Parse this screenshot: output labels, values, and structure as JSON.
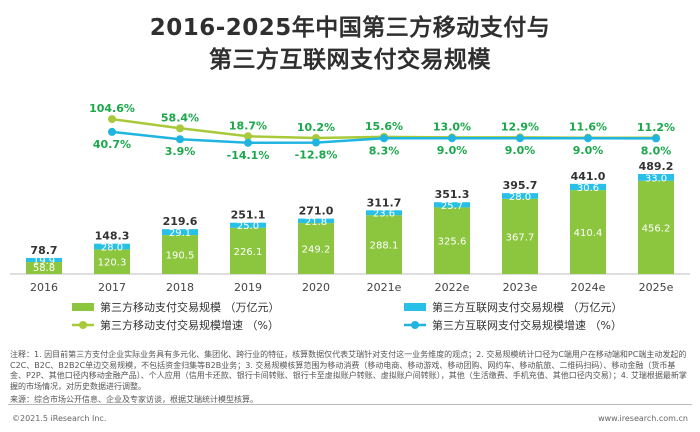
{
  "title_line1": "2016-2025年中国第三方移动支付与",
  "title_line2": "第三方互联网支付交易规模",
  "chart_data": {
    "type": "bar",
    "categories": [
      "2016",
      "2017",
      "2018",
      "2019",
      "2020",
      "2021e",
      "2022e",
      "2023e",
      "2024e",
      "2025e"
    ],
    "series": [
      {
        "name": "第三方移动支付交易规模 （万亿元）",
        "type": "bar",
        "values": [
          58.8,
          120.3,
          190.5,
          226.1,
          249.2,
          288.1,
          325.6,
          367.7,
          410.4,
          456.2
        ],
        "color": "#8cc63f"
      },
      {
        "name": "第三方互联网支付交易规模 （万亿元）",
        "type": "bar",
        "values": [
          19.9,
          28.0,
          29.1,
          25.0,
          21.8,
          23.6,
          25.7,
          28.0,
          30.6,
          33.0
        ],
        "color": "#29c0e8"
      },
      {
        "name": "第三方移动支付交易规模增速 （%）",
        "type": "line",
        "values": [
          null,
          104.6,
          58.4,
          18.7,
          10.2,
          15.6,
          13.0,
          12.9,
          11.6,
          11.2
        ],
        "labels": [
          "",
          "104.6%",
          "58.4%",
          "18.7%",
          "10.2%",
          "15.6%",
          "13.0%",
          "12.9%",
          "11.6%",
          "11.2%"
        ],
        "color": "#a8c93a"
      },
      {
        "name": "第三方互联网支付交易规模增速 （%）",
        "type": "line",
        "values": [
          null,
          40.7,
          3.9,
          -14.1,
          -12.8,
          8.3,
          9.0,
          9.0,
          9.0,
          8.0
        ],
        "labels": [
          "",
          "40.7%",
          "3.9%",
          "-14.1%",
          "-12.8%",
          "8.3%",
          "9.0%",
          "9.0%",
          "9.0%",
          "8.0%"
        ],
        "color": "#1fb5e0"
      }
    ],
    "totals": [
      "78.7",
      "148.3",
      "219.6",
      "251.1",
      "271.0",
      "311.7",
      "351.3",
      "395.7",
      "441.0",
      "489.2"
    ],
    "mobile_labels": [
      "58.8",
      "120.3",
      "190.5",
      "226.1",
      "249.2",
      "288.1",
      "325.6",
      "367.7",
      "410.4",
      "456.2"
    ],
    "internet_labels": [
      "19.9",
      "28.0",
      "29.1",
      "25.0",
      "21.8",
      "23.6",
      "25.7",
      "28.0",
      "30.6",
      "33.0"
    ],
    "highlight_color": "#1aa84a",
    "legend_position": "bottom"
  },
  "notes": "注释：1. 因目前第三方支付企业实际业务具有多元化、集团化、跨行业的特征，核算数据仅代表艾瑞针对支付这一业务维度的观点；2. 交易规模统计口径为C端用户在移动端和PC端主动发起的C2C、B2C、B2B2C单边交易规模，不包括资金归集等B2B业务；3. 交易规模核算范围为移动消费（移动电商、移动游戏、移动团购、网约车、移动航旅、二维码扫码）、移动金融（货币基金、P2P、其他口径内移动金融产品）、个人应用（信用卡还款、银行卡间转账、银行卡至虚拟账户转账、虚拟账户间转账），其他（生活缴费、手机充值、其他口径内交易）；4. 艾瑞根据最新掌握的市场情况，对历史数据进行调整。",
  "source": "来源：综合市场公开信息、企业及专家访谈，根据艾瑞统计模型核算。",
  "footer_left": "©2021.5 iResearch Inc.",
  "footer_right": "www.iresearch.com.cn"
}
